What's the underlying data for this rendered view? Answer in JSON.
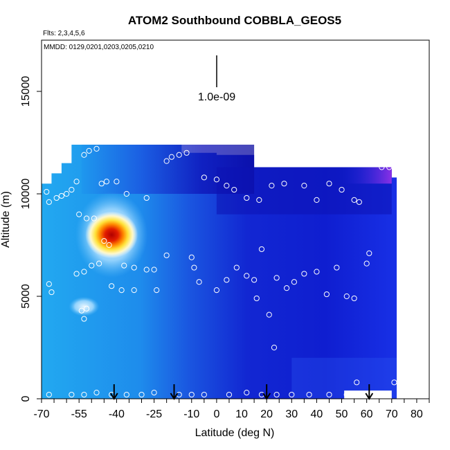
{
  "chart_data": {
    "type": "heatmap",
    "title": "ATOM2 Southbound COBBLA_GEOS5",
    "flights_label": "Flts: 2,3,4,5,6",
    "dates_label": "MMDD: 0129,0201,0203,0205,0210",
    "scale_label": "1.0e-09",
    "xlabel": "Latitude (deg N)",
    "ylabel": "Altitude (m)",
    "xlim": [
      -70,
      85
    ],
    "ylim": [
      0,
      17500
    ],
    "x_ticks": [
      -70,
      -55,
      -40,
      -25,
      -10,
      0,
      10,
      20,
      30,
      40,
      50,
      60,
      70,
      80
    ],
    "y_ticks": [
      0,
      5000,
      10000,
      15000
    ],
    "grid": false,
    "arrow_latitudes": [
      -41,
      -17,
      20,
      61
    ],
    "hotspot": {
      "lat": -42,
      "alt": 8000
    },
    "samples": [
      [
        -68,
        10100
      ],
      [
        -67,
        9600
      ],
      [
        -64,
        9800
      ],
      [
        -62,
        9900
      ],
      [
        -60,
        10000
      ],
      [
        -58,
        10200
      ],
      [
        -56,
        10600
      ],
      [
        -53,
        11900
      ],
      [
        -51,
        12100
      ],
      [
        -48,
        12200
      ],
      [
        -46,
        10500
      ],
      [
        -44,
        10600
      ],
      [
        -40,
        10600
      ],
      [
        -36,
        10000
      ],
      [
        -28,
        9800
      ],
      [
        -20,
        11600
      ],
      [
        -18,
        11800
      ],
      [
        -15,
        11900
      ],
      [
        -12,
        12000
      ],
      [
        -5,
        10800
      ],
      [
        0,
        10700
      ],
      [
        4,
        10400
      ],
      [
        7,
        10200
      ],
      [
        12,
        9800
      ],
      [
        17,
        9700
      ],
      [
        22,
        10400
      ],
      [
        27,
        10500
      ],
      [
        35,
        10400
      ],
      [
        40,
        9700
      ],
      [
        45,
        10500
      ],
      [
        50,
        10200
      ],
      [
        55,
        9700
      ],
      [
        57,
        9600
      ],
      [
        61,
        7100
      ],
      [
        66,
        11300
      ],
      [
        69,
        11300
      ],
      [
        -55,
        9000
      ],
      [
        -52,
        8800
      ],
      [
        -49,
        8800
      ],
      [
        -45,
        7700
      ],
      [
        -43,
        7500
      ],
      [
        -47,
        6600
      ],
      [
        -37,
        6500
      ],
      [
        -33,
        6400
      ],
      [
        -28,
        6300
      ],
      [
        -25,
        6300
      ],
      [
        -20,
        7000
      ],
      [
        -10,
        6900
      ],
      [
        -9,
        6400
      ],
      [
        -7,
        5700
      ],
      [
        0,
        5300
      ],
      [
        4,
        5800
      ],
      [
        8,
        6400
      ],
      [
        12,
        6000
      ],
      [
        15,
        5800
      ],
      [
        18,
        7300
      ],
      [
        24,
        5900
      ],
      [
        28,
        5400
      ],
      [
        31,
        5700
      ],
      [
        35,
        6100
      ],
      [
        40,
        6200
      ],
      [
        44,
        5100
      ],
      [
        48,
        6400
      ],
      [
        52,
        5000
      ],
      [
        55,
        4900
      ],
      [
        60,
        6600
      ],
      [
        -67,
        5600
      ],
      [
        -66,
        5200
      ],
      [
        -56,
        6100
      ],
      [
        -53,
        6200
      ],
      [
        -50,
        6500
      ],
      [
        -42,
        5500
      ],
      [
        -38,
        5300
      ],
      [
        -33,
        5300
      ],
      [
        -24,
        5300
      ],
      [
        -54,
        4300
      ],
      [
        -53,
        3900
      ],
      [
        -52,
        4400
      ],
      [
        16,
        4900
      ],
      [
        21,
        4100
      ],
      [
        23,
        2500
      ],
      [
        56,
        800
      ],
      [
        71,
        800
      ],
      [
        -67,
        200
      ],
      [
        -58,
        200
      ],
      [
        -53,
        200
      ],
      [
        -48,
        300
      ],
      [
        -42,
        200
      ],
      [
        -36,
        200
      ],
      [
        -30,
        200
      ],
      [
        -25,
        300
      ],
      [
        -15,
        200
      ],
      [
        -10,
        200
      ],
      [
        -5,
        200
      ],
      [
        5,
        200
      ],
      [
        12,
        300
      ],
      [
        18,
        200
      ],
      [
        24,
        200
      ],
      [
        30,
        200
      ],
      [
        37,
        200
      ],
      [
        45,
        200
      ],
      [
        52,
        200
      ],
      [
        58,
        200
      ],
      [
        65,
        200
      ]
    ]
  }
}
